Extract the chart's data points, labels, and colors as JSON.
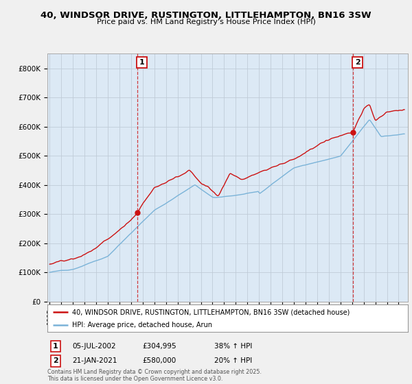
{
  "title_line1": "40, WINDSOR DRIVE, RUSTINGTON, LITTLEHAMPTON, BN16 3SW",
  "title_line2": "Price paid vs. HM Land Registry's House Price Index (HPI)",
  "background_color": "#f0f0f0",
  "plot_bg_color": "#dce9f5",
  "hpi_color": "#7ab3d8",
  "price_color": "#cc1111",
  "dashed_color": "#cc1111",
  "ylim": [
    0,
    850000
  ],
  "yticks": [
    0,
    100000,
    200000,
    300000,
    400000,
    500000,
    600000,
    700000,
    800000
  ],
  "ytick_labels": [
    "£0",
    "£100K",
    "£200K",
    "£300K",
    "£400K",
    "£500K",
    "£600K",
    "£700K",
    "£800K"
  ],
  "sale1_year": 2002.51,
  "sale1_price": 304995,
  "sale1_label": "1",
  "sale1_date": "05-JUL-2002",
  "sale1_price_str": "£304,995",
  "sale1_hpi_pct": "38% ↑ HPI",
  "sale2_year": 2021.06,
  "sale2_price": 580000,
  "sale2_label": "2",
  "sale2_date": "21-JAN-2021",
  "sale2_price_str": "£580,000",
  "sale2_hpi_pct": "20% ↑ HPI",
  "legend_label1": "40, WINDSOR DRIVE, RUSTINGTON, LITTLEHAMPTON, BN16 3SW (detached house)",
  "legend_label2": "HPI: Average price, detached house, Arun",
  "footer": "Contains HM Land Registry data © Crown copyright and database right 2025.\nThis data is licensed under the Open Government Licence v3.0.",
  "xmin": 1994.8,
  "xmax": 2025.8
}
